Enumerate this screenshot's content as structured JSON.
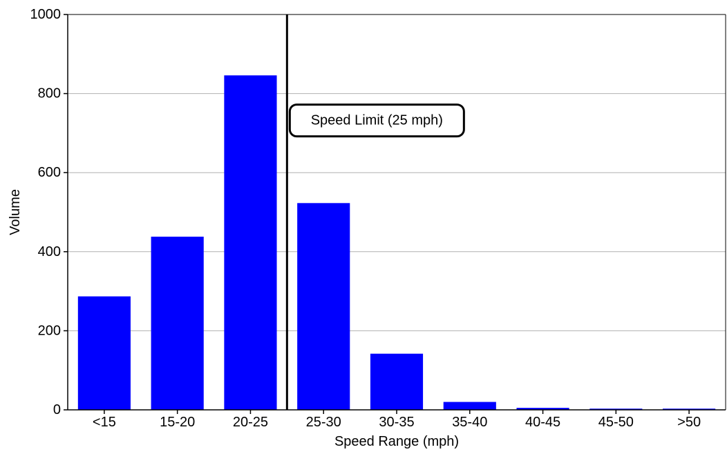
{
  "chart_data": {
    "type": "bar",
    "title": "",
    "xlabel": "Speed Range (mph)",
    "ylabel": "Volume",
    "categories": [
      "<15",
      "15-20",
      "20-25",
      "25-30",
      "30-35",
      "35-40",
      "40-45",
      "45-50",
      ">50"
    ],
    "values": [
      287,
      438,
      846,
      523,
      142,
      20,
      5,
      3,
      3
    ],
    "ylim": [
      0,
      1000
    ],
    "yticks": [
      0,
      200,
      400,
      600,
      800,
      1000
    ],
    "grid": "horizontal",
    "bar_color": "#0000ff",
    "reference_line": {
      "after_category_index": 2,
      "color": "#000000"
    },
    "annotation": {
      "text": "Speed Limit (25 mph)",
      "y": 732
    }
  }
}
